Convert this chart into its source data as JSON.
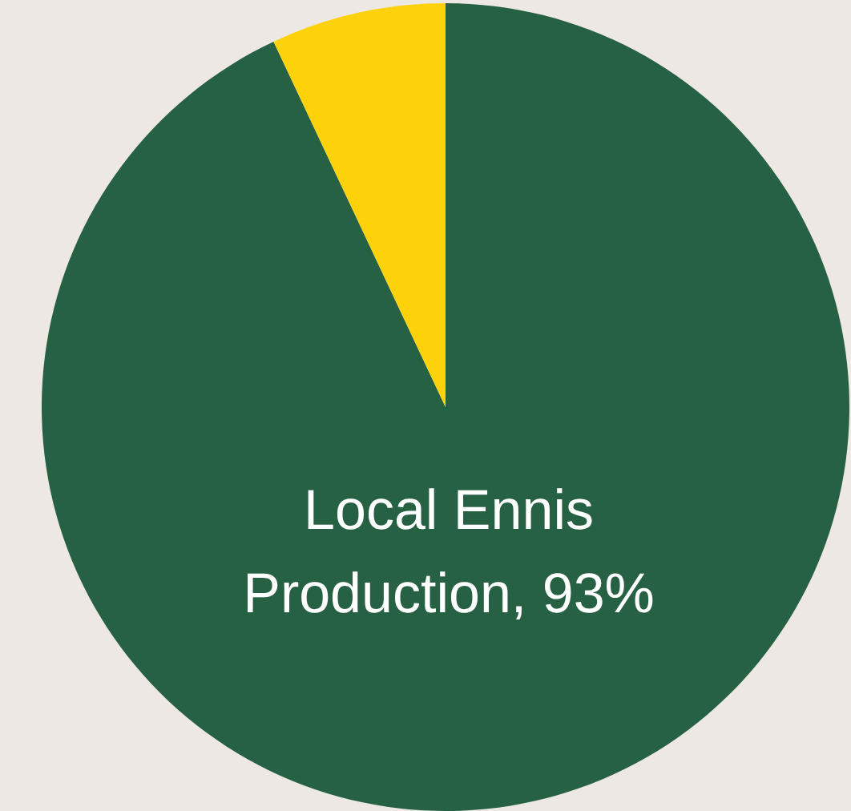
{
  "chart_data": {
    "type": "pie",
    "categories": [
      "Local Ennis Production",
      null
    ],
    "values": [
      93,
      7
    ],
    "colors": [
      "#276143",
      "#fdd20a"
    ],
    "value_labels": [
      "93%",
      null
    ]
  }
}
